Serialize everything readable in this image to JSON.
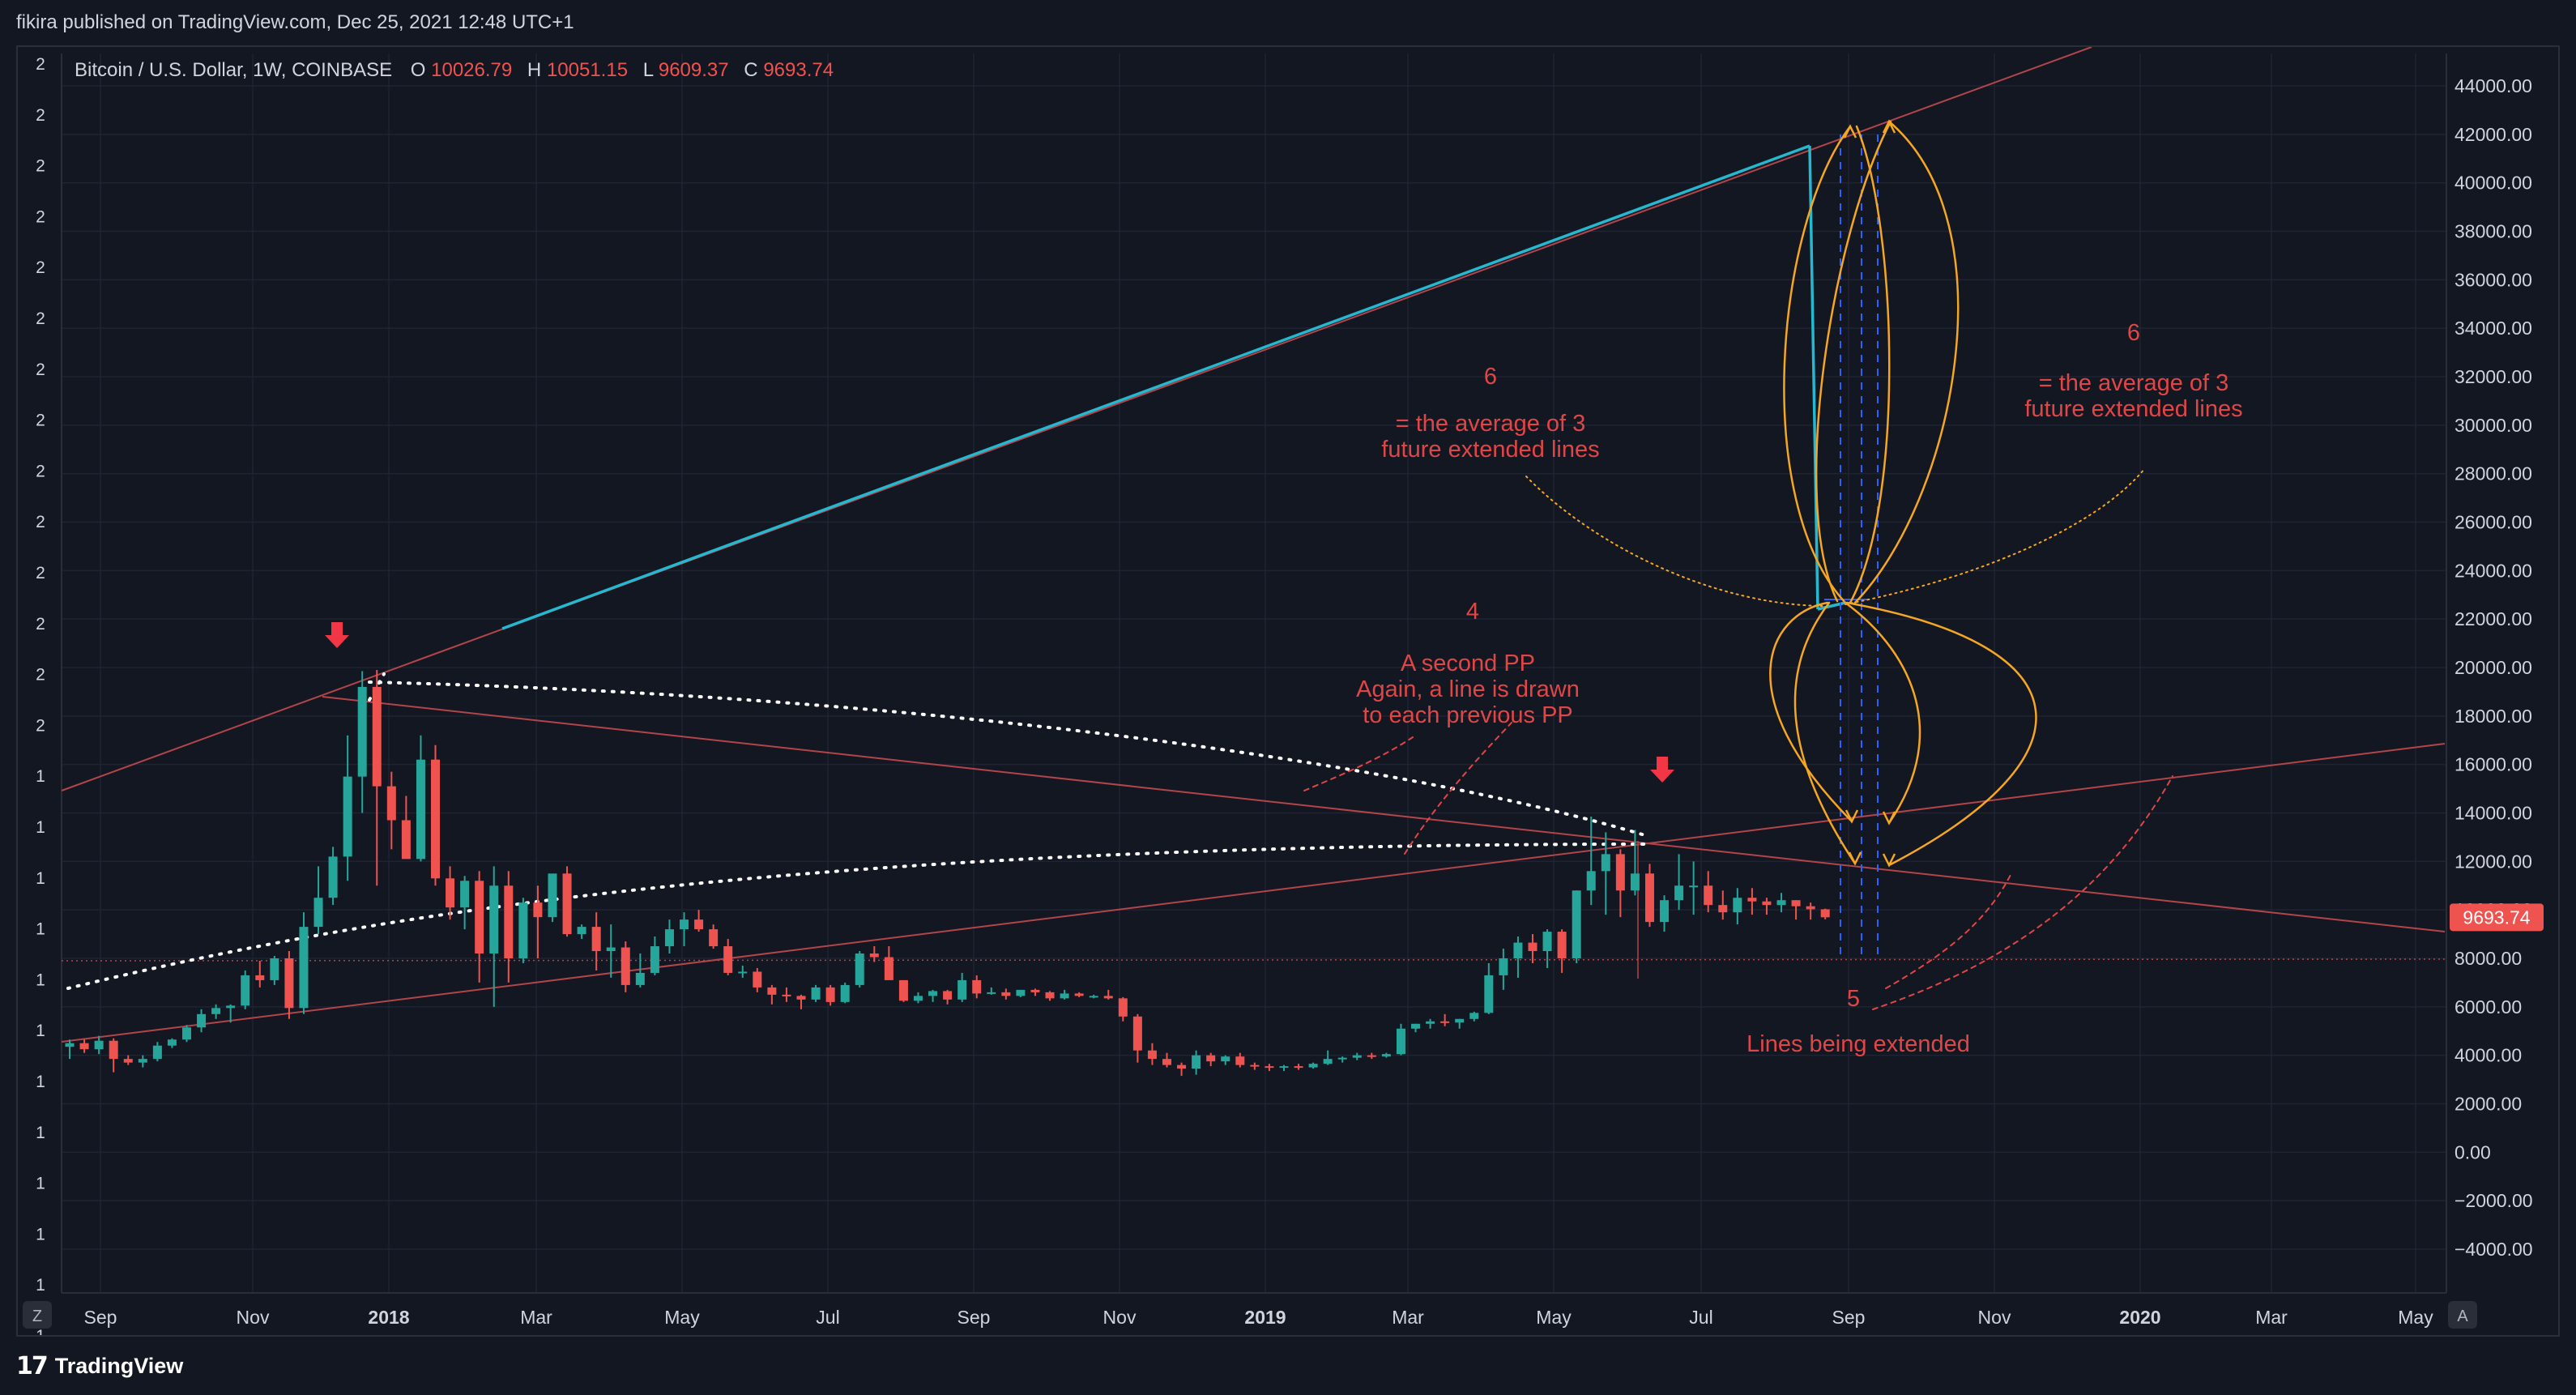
{
  "header": {
    "published": "fikira published on TradingView.com, Dec 25, 2021 12:48 UTC+1"
  },
  "legend": {
    "symbol": "Bitcoin / U.S. Dollar, 1W, COINBASE",
    "o_label": "O",
    "o_value": "10026.79",
    "h_label": "H",
    "h_value": "10051.15",
    "l_label": "L",
    "l_value": "9609.37",
    "c_label": "C",
    "c_value": "9693.74"
  },
  "left_scale_labels": [
    "2",
    "2",
    "2",
    "2",
    "2",
    "2",
    "2",
    "2",
    "2",
    "2",
    "2",
    "2",
    "2",
    "2",
    "1",
    "1",
    "1",
    "1",
    "1",
    "1",
    "1",
    "1",
    "1",
    "1",
    "1",
    "1"
  ],
  "price_scale": {
    "ticks": [
      "44000.00",
      "42000.00",
      "40000.00",
      "38000.00",
      "36000.00",
      "34000.00",
      "32000.00",
      "30000.00",
      "28000.00",
      "26000.00",
      "24000.00",
      "22000.00",
      "20000.00",
      "18000.00",
      "16000.00",
      "14000.00",
      "12000.00",
      "10000.00",
      "8000.00",
      "6000.00",
      "4000.00",
      "2000.00",
      "0.00",
      "−2000.00",
      "−4000.00"
    ],
    "last_price": "9693.74"
  },
  "time_axis": {
    "labels": [
      {
        "text": "Sep",
        "bold": false
      },
      {
        "text": "Nov",
        "bold": false
      },
      {
        "text": "2018",
        "bold": true
      },
      {
        "text": "Mar",
        "bold": false
      },
      {
        "text": "May",
        "bold": false
      },
      {
        "text": "Jul",
        "bold": false
      },
      {
        "text": "Sep",
        "bold": false
      },
      {
        "text": "Nov",
        "bold": false
      },
      {
        "text": "2019",
        "bold": true
      },
      {
        "text": "Mar",
        "bold": false
      },
      {
        "text": "May",
        "bold": false
      },
      {
        "text": "Jul",
        "bold": false
      },
      {
        "text": "Sep",
        "bold": false
      },
      {
        "text": "Nov",
        "bold": false
      },
      {
        "text": "2020",
        "bold": true
      },
      {
        "text": "Mar",
        "bold": false
      },
      {
        "text": "May",
        "bold": false
      }
    ],
    "z_button": "Z",
    "a_button": "A"
  },
  "annotations": {
    "six_left_num": "6",
    "six_left_l1": "= the average of 3",
    "six_left_l2": "future extended lines",
    "six_right_num": "6",
    "six_right_l1": "= the average of 3",
    "six_right_l2": "future extended lines",
    "four_num": "4",
    "four_l1": "A second PP",
    "four_l2": "Again, a line is drawn",
    "four_l3": "to each previous PP",
    "five_num": "5",
    "five_l1": "Lines being extended"
  },
  "footer": {
    "brand": "TradingView"
  },
  "colors": {
    "up": "#26a69a",
    "down": "#ef5350",
    "background": "#131722",
    "trendline": "#b2454a",
    "teal_line": "#26b8cf",
    "curve": "#f5a623",
    "annotation_text": "#e04646",
    "grid": "#1f2433"
  },
  "chart_data": {
    "type": "candlestick",
    "title": "Bitcoin / U.S. Dollar, 1W, COINBASE",
    "timeframe": "1W",
    "y_scale": "linear",
    "ylim": [
      -4000,
      45000
    ],
    "grid": true,
    "x_labels": [
      "Sep",
      "Nov",
      "2018",
      "Mar",
      "May",
      "Jul",
      "Sep",
      "Nov",
      "2019",
      "Mar",
      "May",
      "Jul",
      "Sep",
      "Nov",
      "2020",
      "Mar",
      "May"
    ],
    "last_close": 9693.74,
    "series": [
      {
        "name": "BTC/USD weekly",
        "ohlc": [
          [
            4350,
            4650,
            3850,
            4500
          ],
          [
            4500,
            4650,
            4100,
            4250
          ],
          [
            4250,
            4800,
            4050,
            4600
          ],
          [
            4600,
            4700,
            3300,
            3850
          ],
          [
            3850,
            4000,
            3600,
            3700
          ],
          [
            3700,
            4000,
            3500,
            3850
          ],
          [
            3850,
            4550,
            3750,
            4400
          ],
          [
            4400,
            4700,
            4300,
            4650
          ],
          [
            4650,
            5250,
            4550,
            5150
          ],
          [
            5150,
            5900,
            4950,
            5700
          ],
          [
            5700,
            6100,
            5500,
            5950
          ],
          [
            5950,
            6100,
            5350,
            6050
          ],
          [
            6050,
            7500,
            5900,
            7300
          ],
          [
            7300,
            7900,
            6800,
            7100
          ],
          [
            7100,
            8100,
            6900,
            8000
          ],
          [
            8000,
            8300,
            5500,
            5950
          ],
          [
            5950,
            9900,
            5700,
            9300
          ],
          [
            9300,
            11800,
            9000,
            10500
          ],
          [
            10500,
            12600,
            10200,
            12200
          ],
          [
            12200,
            17200,
            11200,
            15500
          ],
          [
            15500,
            19850,
            14000,
            19200
          ],
          [
            19200,
            19900,
            11000,
            15100
          ],
          [
            15100,
            15700,
            12500,
            13700
          ],
          [
            13700,
            14700,
            12300,
            12100
          ],
          [
            12100,
            17200,
            12000,
            16200
          ],
          [
            16200,
            16800,
            11000,
            11300
          ],
          [
            11300,
            11800,
            9600,
            10100
          ],
          [
            10100,
            11400,
            9200,
            11200
          ],
          [
            11200,
            11600,
            7000,
            8200
          ],
          [
            8200,
            11800,
            6000,
            11000
          ],
          [
            11000,
            11600,
            7000,
            8000
          ],
          [
            8000,
            10500,
            7800,
            10300
          ],
          [
            10300,
            11000,
            8000,
            9700
          ],
          [
            9700,
            11200,
            9500,
            11500
          ],
          [
            11500,
            11800,
            8900,
            9000
          ],
          [
            9000,
            9400,
            8800,
            9300
          ],
          [
            9300,
            9900,
            7500,
            8300
          ],
          [
            8300,
            9400,
            7200,
            8450
          ],
          [
            8450,
            8700,
            6600,
            6900
          ],
          [
            6900,
            8200,
            6800,
            7400
          ],
          [
            7400,
            8900,
            7300,
            8500
          ],
          [
            8500,
            9600,
            8200,
            9200
          ],
          [
            9200,
            9900,
            8500,
            9600
          ],
          [
            9600,
            10000,
            9100,
            9200
          ],
          [
            9200,
            9400,
            8400,
            8500
          ],
          [
            8500,
            8800,
            7300,
            7400
          ],
          [
            7400,
            7700,
            7200,
            7450
          ],
          [
            7450,
            7600,
            6600,
            6800
          ],
          [
            6800,
            6900,
            6100,
            6500
          ],
          [
            6500,
            6800,
            6200,
            6450
          ],
          [
            6450,
            6500,
            5900,
            6300
          ],
          [
            6300,
            6900,
            6200,
            6800
          ],
          [
            6800,
            6900,
            6050,
            6200
          ],
          [
            6200,
            7000,
            6150,
            6900
          ],
          [
            6900,
            8300,
            6800,
            8200
          ],
          [
            8200,
            8500,
            7850,
            8050
          ],
          [
            8050,
            8500,
            7200,
            7100
          ],
          [
            7100,
            7100,
            6200,
            6250
          ],
          [
            6250,
            6600,
            6150,
            6450
          ],
          [
            6450,
            6700,
            6200,
            6650
          ],
          [
            6650,
            6700,
            6100,
            6300
          ],
          [
            6300,
            7400,
            6200,
            7100
          ],
          [
            7100,
            7300,
            6350,
            6550
          ],
          [
            6550,
            6800,
            6500,
            6600
          ],
          [
            6600,
            6750,
            6300,
            6450
          ],
          [
            6450,
            6700,
            6400,
            6700
          ],
          [
            6700,
            6750,
            6450,
            6600
          ],
          [
            6600,
            6650,
            6250,
            6350
          ],
          [
            6350,
            6700,
            6300,
            6550
          ],
          [
            6550,
            6600,
            6400,
            6450
          ],
          [
            6450,
            6500,
            6350,
            6450
          ],
          [
            6450,
            6700,
            6300,
            6350
          ],
          [
            6350,
            6400,
            5400,
            5600
          ],
          [
            5600,
            5700,
            3700,
            4200
          ],
          [
            4200,
            4500,
            3600,
            3850
          ],
          [
            3850,
            4100,
            3500,
            3600
          ],
          [
            3600,
            3700,
            3150,
            3450
          ],
          [
            3450,
            4200,
            3200,
            4000
          ],
          [
            4000,
            4100,
            3550,
            3750
          ],
          [
            3750,
            4000,
            3600,
            3950
          ],
          [
            3950,
            4100,
            3500,
            3600
          ],
          [
            3600,
            3700,
            3400,
            3550
          ],
          [
            3550,
            3650,
            3350,
            3500
          ],
          [
            3500,
            3600,
            3350,
            3550
          ],
          [
            3550,
            3650,
            3400,
            3500
          ],
          [
            3500,
            3700,
            3450,
            3650
          ],
          [
            3650,
            4200,
            3600,
            3850
          ],
          [
            3850,
            3950,
            3700,
            3900
          ],
          [
            3900,
            4100,
            3800,
            4000
          ],
          [
            4000,
            4100,
            3850,
            3950
          ],
          [
            3950,
            4100,
            3900,
            4050
          ],
          [
            4050,
            5300,
            4000,
            5100
          ],
          [
            5100,
            5300,
            4950,
            5300
          ],
          [
            5300,
            5500,
            5100,
            5400
          ],
          [
            5400,
            5700,
            5200,
            5350
          ],
          [
            5350,
            5500,
            5100,
            5500
          ],
          [
            5500,
            5800,
            5400,
            5750
          ],
          [
            5750,
            7800,
            5700,
            7300
          ],
          [
            7300,
            8400,
            6700,
            8000
          ],
          [
            8000,
            8900,
            7200,
            8650
          ],
          [
            8650,
            9000,
            7800,
            8300
          ],
          [
            8300,
            9200,
            7600,
            9100
          ],
          [
            9100,
            9200,
            7400,
            8000
          ],
          [
            8000,
            10800,
            7800,
            10800
          ],
          [
            10800,
            13850,
            10200,
            11600
          ],
          [
            11600,
            13200,
            9800,
            12300
          ],
          [
            12300,
            12500,
            9700,
            10800
          ],
          [
            10800,
            13300,
            10600,
            11500
          ],
          [
            11500,
            11900,
            9300,
            9500
          ],
          [
            9500,
            10600,
            9100,
            10400
          ],
          [
            10400,
            12300,
            10000,
            11000
          ],
          [
            11000,
            12000,
            9800,
            11000
          ],
          [
            11000,
            11600,
            9900,
            10200
          ],
          [
            10200,
            10800,
            9600,
            9900
          ],
          [
            9900,
            10900,
            9400,
            10500
          ],
          [
            10500,
            10900,
            9800,
            10350
          ],
          [
            10350,
            10500,
            9800,
            10200
          ],
          [
            10200,
            10700,
            9900,
            10400
          ],
          [
            10400,
            10400,
            9600,
            10150
          ],
          [
            10150,
            10300,
            9600,
            10026
          ],
          [
            10026,
            10051,
            9609,
            9694
          ]
        ]
      }
    ],
    "annotations": [
      "6",
      "= the average of 3",
      "future extended lines",
      "4",
      "A second PP",
      "Again, a line is drawn",
      "to each previous PP",
      "5",
      "Lines being extended"
    ]
  }
}
